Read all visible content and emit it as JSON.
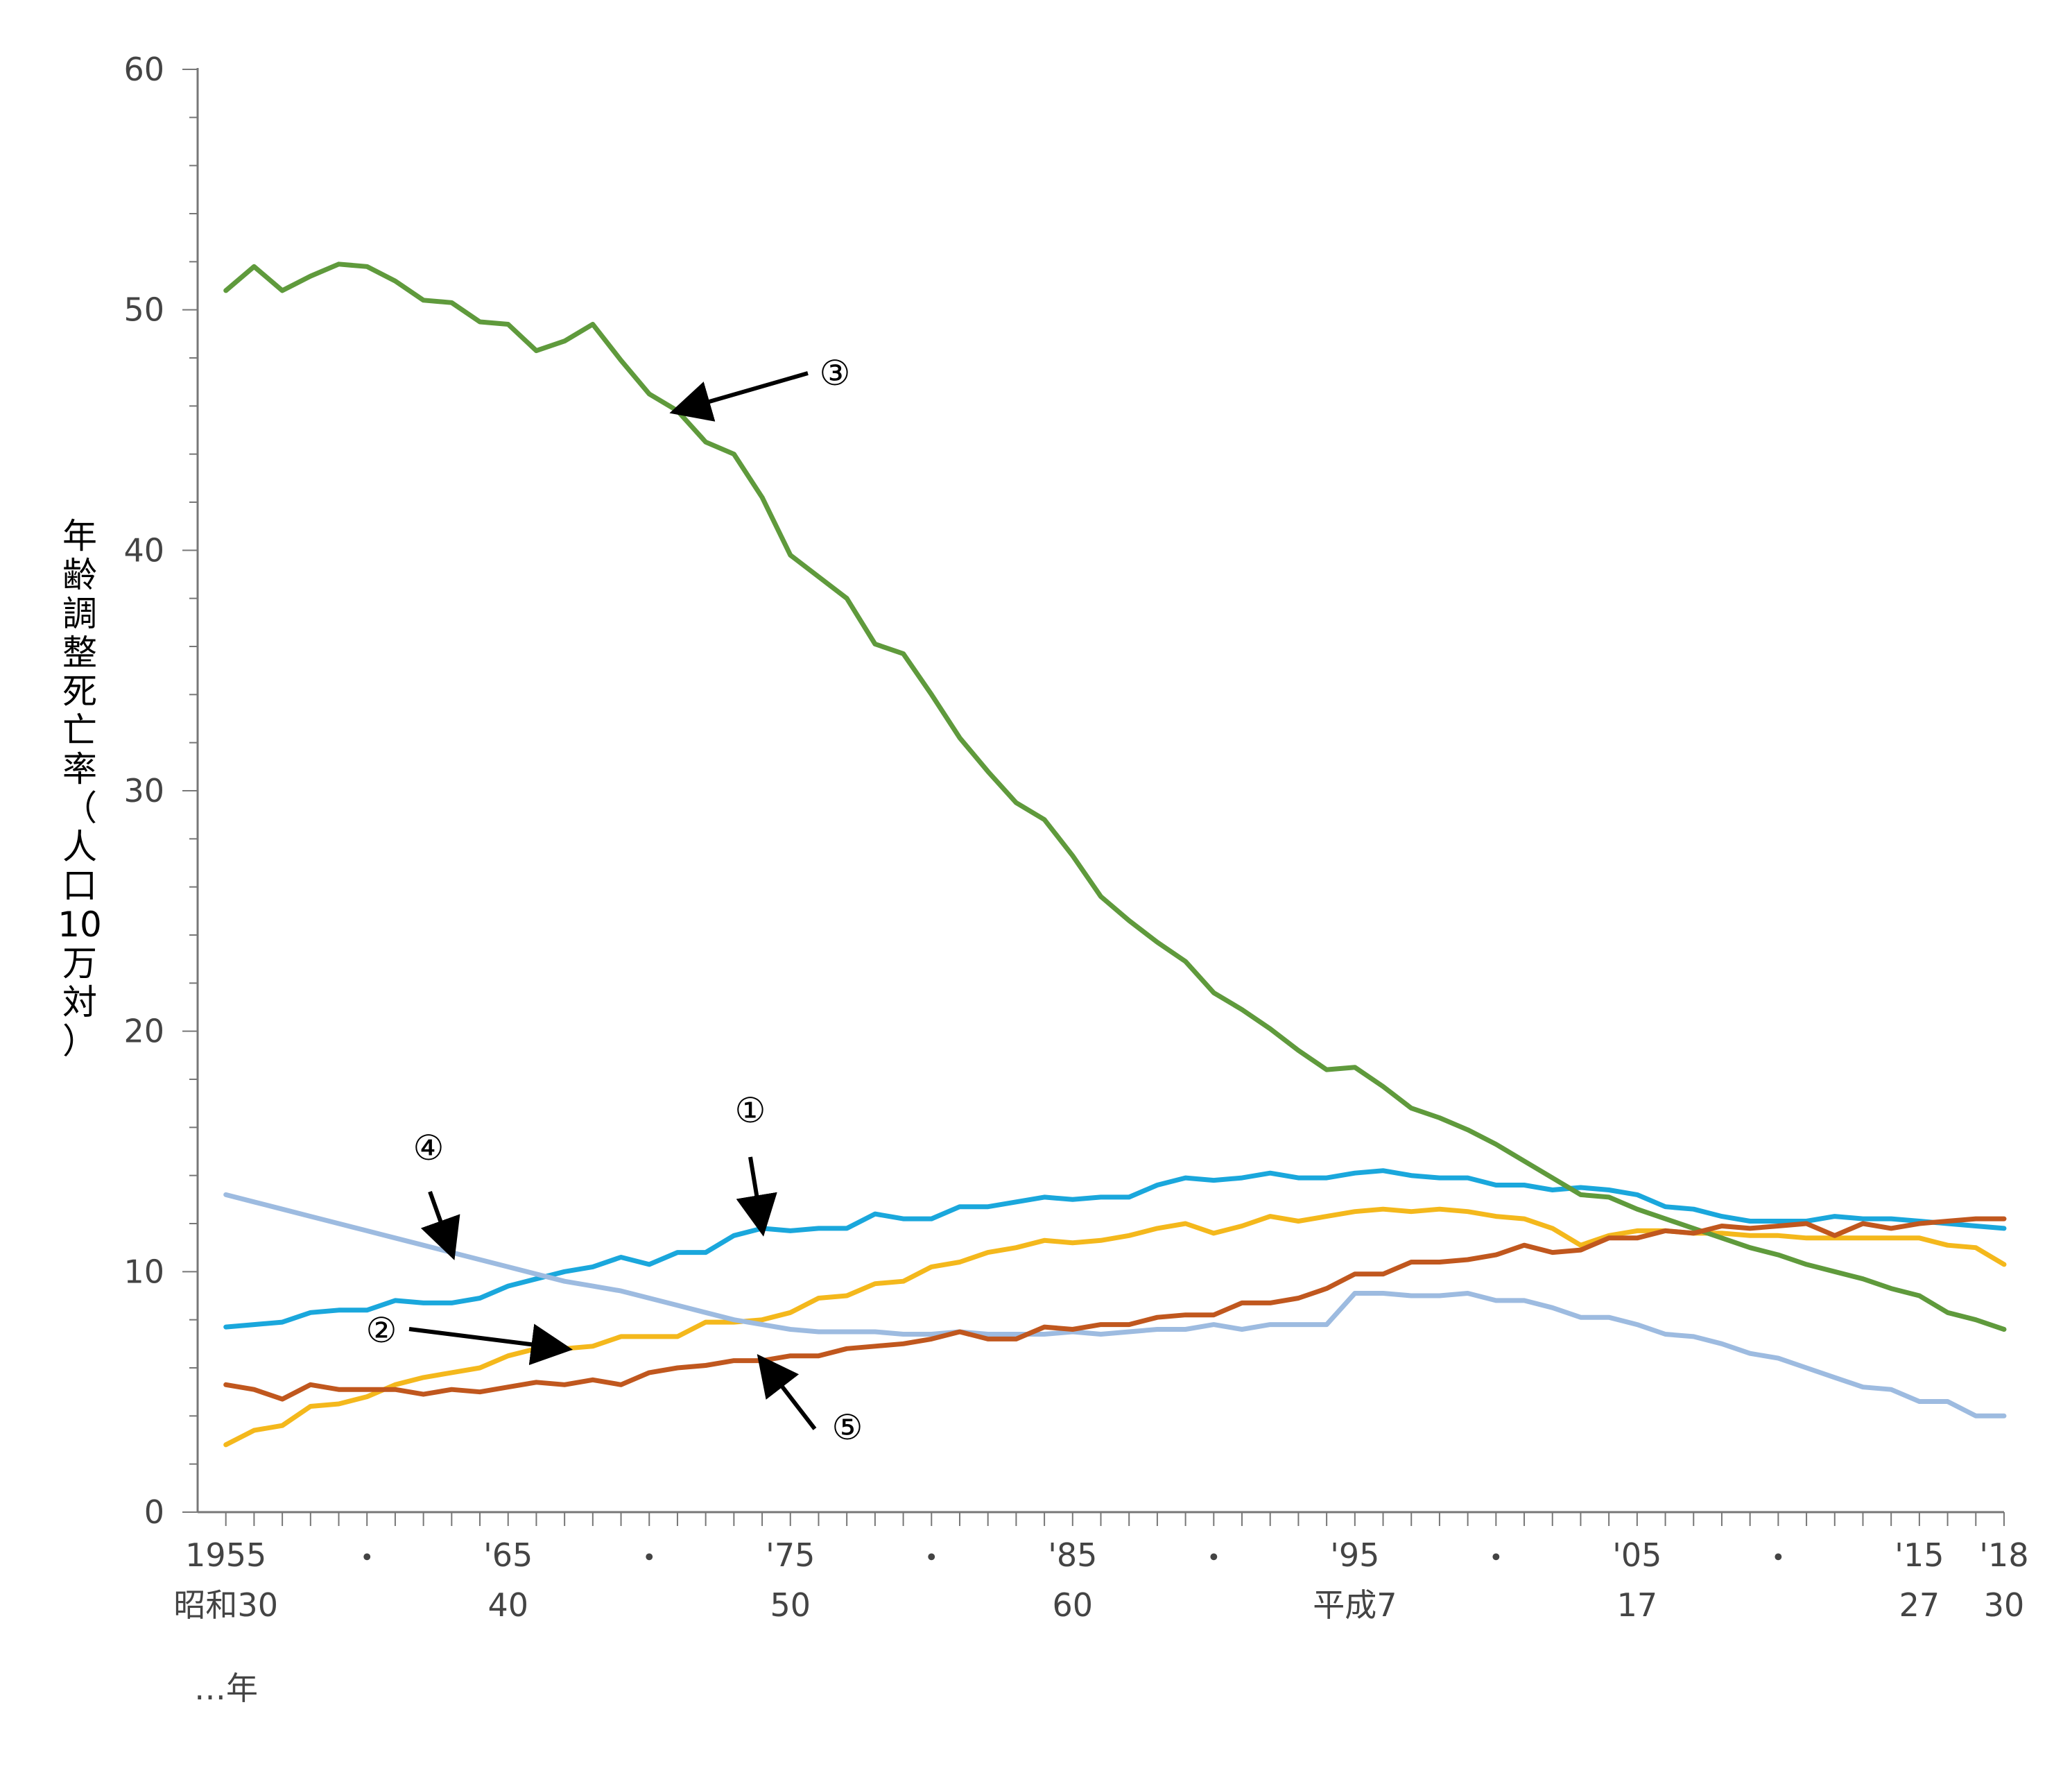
{
  "chart_data": {
    "type": "line",
    "ylabel_chars": [
      "年",
      "齢",
      "調",
      "整",
      "死",
      "亡",
      "率",
      "（",
      "人",
      "口",
      "10",
      "万",
      "対",
      "）"
    ],
    "ylim": [
      0,
      60
    ],
    "yticks": [
      "0",
      "10",
      "20",
      "30",
      "40",
      "50",
      "60"
    ],
    "xlim": [
      1954,
      2018
    ],
    "xtick_labels": [
      {
        "x": 1955,
        "top": "1955",
        "bottom": "昭和30"
      },
      {
        "x": 1960,
        "top": "・",
        "bottom": ""
      },
      {
        "x": 1965,
        "top": "'65",
        "bottom": "40"
      },
      {
        "x": 1970,
        "top": "・",
        "bottom": ""
      },
      {
        "x": 1975,
        "top": "'75",
        "bottom": "50"
      },
      {
        "x": 1980,
        "top": "・",
        "bottom": ""
      },
      {
        "x": 1985,
        "top": "'85",
        "bottom": "60"
      },
      {
        "x": 1990,
        "top": "・",
        "bottom": ""
      },
      {
        "x": 1995,
        "top": "'95",
        "bottom": "平成7"
      },
      {
        "x": 2000,
        "top": "・",
        "bottom": ""
      },
      {
        "x": 2005,
        "top": "'05",
        "bottom": "17"
      },
      {
        "x": 2010,
        "top": "・",
        "bottom": ""
      },
      {
        "x": 2015,
        "top": "'15",
        "bottom": "27"
      },
      {
        "x": 2018,
        "top": "'18",
        "bottom": "30"
      }
    ],
    "unit_label": "…年",
    "grid": false,
    "series": [
      {
        "callout": "①",
        "color": "#1aa7dc",
        "x": [
          1955,
          1956,
          1957,
          1958,
          1959,
          1960,
          1961,
          1962,
          1963,
          1964,
          1965,
          1966,
          1967,
          1968,
          1969,
          1970,
          1971,
          1972,
          1973,
          1974,
          1975,
          1976,
          1977,
          1978,
          1979,
          1980,
          1981,
          1982,
          1983,
          1984,
          1985,
          1986,
          1987,
          1988,
          1989,
          1990,
          1991,
          1992,
          1993,
          1994,
          1995,
          1996,
          1997,
          1998,
          1999,
          2000,
          2001,
          2002,
          2003,
          2004,
          2005,
          2006,
          2007,
          2008,
          2009,
          2010,
          2011,
          2012,
          2013,
          2014,
          2015,
          2016,
          2017,
          2018
        ],
        "values": [
          7.7,
          7.8,
          7.9,
          8.3,
          8.4,
          8.4,
          8.8,
          8.7,
          8.7,
          8.9,
          9.4,
          9.7,
          10.0,
          10.2,
          10.6,
          10.3,
          10.8,
          10.8,
          11.5,
          11.8,
          11.7,
          11.8,
          11.8,
          12.4,
          12.2,
          12.2,
          12.7,
          12.7,
          12.9,
          13.1,
          13.0,
          13.1,
          13.1,
          13.6,
          13.9,
          13.8,
          13.9,
          14.1,
          13.9,
          13.9,
          14.1,
          14.2,
          14.0,
          13.9,
          13.9,
          13.6,
          13.6,
          13.4,
          13.5,
          13.4,
          13.2,
          12.7,
          12.6,
          12.3,
          12.1,
          12.1,
          12.1,
          12.3,
          12.2,
          12.2,
          12.1,
          12.0,
          11.9,
          11.8
        ]
      },
      {
        "callout": "②",
        "color": "#f4b81c",
        "x": [
          1955,
          1956,
          1957,
          1958,
          1959,
          1960,
          1961,
          1962,
          1963,
          1964,
          1965,
          1966,
          1967,
          1968,
          1969,
          1970,
          1971,
          1972,
          1973,
          1974,
          1975,
          1976,
          1977,
          1978,
          1979,
          1980,
          1981,
          1982,
          1983,
          1984,
          1985,
          1986,
          1987,
          1988,
          1989,
          1990,
          1991,
          1992,
          1993,
          1994,
          1995,
          1996,
          1997,
          1998,
          1999,
          2000,
          2001,
          2002,
          2003,
          2004,
          2005,
          2006,
          2007,
          2008,
          2009,
          2010,
          2011,
          2012,
          2013,
          2014,
          2015,
          2016,
          2017,
          2018
        ],
        "values": [
          2.8,
          3.4,
          3.6,
          4.4,
          4.5,
          4.8,
          5.3,
          5.6,
          5.8,
          6.0,
          6.5,
          6.8,
          6.8,
          6.9,
          7.3,
          7.3,
          7.3,
          7.9,
          7.9,
          8.0,
          8.3,
          8.9,
          9.0,
          9.5,
          9.6,
          10.2,
          10.4,
          10.8,
          11.0,
          11.3,
          11.2,
          11.3,
          11.5,
          11.8,
          12.0,
          11.6,
          11.9,
          12.3,
          12.1,
          12.3,
          12.5,
          12.6,
          12.5,
          12.6,
          12.5,
          12.3,
          12.2,
          11.8,
          11.1,
          11.5,
          11.7,
          11.7,
          11.6,
          11.6,
          11.5,
          11.5,
          11.4,
          11.4,
          11.4,
          11.4,
          11.4,
          11.1,
          11.0,
          10.3
        ]
      },
      {
        "callout": "③",
        "color": "#5f9a3c",
        "x": [
          1955,
          1956,
          1957,
          1958,
          1959,
          1960,
          1961,
          1962,
          1963,
          1964,
          1965,
          1966,
          1967,
          1968,
          1969,
          1970,
          1971,
          1972,
          1973,
          1974,
          1975,
          1976,
          1977,
          1978,
          1979,
          1980,
          1981,
          1982,
          1983,
          1984,
          1985,
          1986,
          1987,
          1988,
          1989,
          1990,
          1991,
          1992,
          1993,
          1994,
          1995,
          1996,
          1997,
          1998,
          1999,
          2000,
          2001,
          2002,
          2003,
          2004,
          2005,
          2006,
          2007,
          2008,
          2009,
          2010,
          2011,
          2012,
          2013,
          2014,
          2015,
          2016,
          2017,
          2018
        ],
        "values": [
          50.8,
          51.8,
          50.8,
          51.4,
          51.9,
          51.8,
          51.2,
          50.4,
          50.3,
          49.5,
          49.4,
          48.3,
          48.7,
          49.4,
          47.9,
          46.5,
          45.8,
          44.5,
          44.0,
          42.2,
          39.8,
          38.9,
          38.0,
          36.1,
          35.7,
          34.0,
          32.2,
          30.8,
          29.5,
          28.8,
          27.3,
          25.6,
          24.6,
          23.7,
          22.9,
          21.6,
          20.9,
          20.1,
          19.2,
          18.4,
          18.5,
          17.7,
          16.8,
          16.4,
          15.9,
          15.3,
          14.6,
          13.9,
          13.2,
          13.1,
          12.6,
          12.2,
          11.8,
          11.4,
          11.0,
          10.7,
          10.3,
          10.0,
          9.7,
          9.3,
          9.0,
          8.3,
          8.0,
          7.6
        ]
      },
      {
        "callout": "④",
        "color": "#9dbbe0",
        "x": [
          1955,
          1956,
          1957,
          1958,
          1959,
          1960,
          1961,
          1962,
          1963,
          1964,
          1965,
          1966,
          1967,
          1968,
          1969,
          1970,
          1971,
          1972,
          1973,
          1974,
          1975,
          1976,
          1977,
          1978,
          1979,
          1980,
          1981,
          1982,
          1983,
          1984,
          1985,
          1986,
          1987,
          1988,
          1989,
          1990,
          1991,
          1992,
          1993,
          1994,
          1995,
          1996,
          1997,
          1998,
          1999,
          2000,
          2001,
          2002,
          2003,
          2004,
          2005,
          2006,
          2007,
          2008,
          2009,
          2010,
          2011,
          2012,
          2013,
          2014,
          2015,
          2016,
          2017,
          2018
        ],
        "values": [
          13.2,
          12.9,
          12.6,
          12.3,
          12.0,
          11.7,
          11.4,
          11.1,
          10.8,
          10.5,
          10.2,
          9.9,
          9.6,
          9.4,
          9.2,
          8.9,
          8.6,
          8.3,
          8.0,
          7.8,
          7.6,
          7.5,
          7.5,
          7.5,
          7.4,
          7.4,
          7.5,
          7.4,
          7.4,
          7.4,
          7.5,
          7.4,
          7.5,
          7.6,
          7.6,
          7.8,
          7.6,
          7.8,
          7.8,
          7.8,
          9.1,
          9.1,
          9.0,
          9.0,
          9.1,
          8.8,
          8.8,
          8.5,
          8.1,
          8.1,
          7.8,
          7.4,
          7.3,
          7.0,
          6.6,
          6.4,
          6.0,
          5.6,
          5.2,
          5.1,
          4.6,
          4.6,
          4.0,
          4.0
        ]
      },
      {
        "callout": "⑤",
        "color": "#c0571e",
        "x": [
          1955,
          1956,
          1957,
          1958,
          1959,
          1960,
          1961,
          1962,
          1963,
          1964,
          1965,
          1966,
          1967,
          1968,
          1969,
          1970,
          1971,
          1972,
          1973,
          1974,
          1975,
          1976,
          1977,
          1978,
          1979,
          1980,
          1981,
          1982,
          1983,
          1984,
          1985,
          1986,
          1987,
          1988,
          1989,
          1990,
          1991,
          1992,
          1993,
          1994,
          1995,
          1996,
          1997,
          1998,
          1999,
          2000,
          2001,
          2002,
          2003,
          2004,
          2005,
          2006,
          2007,
          2008,
          2009,
          2010,
          2011,
          2012,
          2013,
          2014,
          2015,
          2016,
          2017,
          2018
        ],
        "values": [
          5.3,
          5.1,
          4.7,
          5.3,
          5.1,
          5.1,
          5.1,
          4.9,
          5.1,
          5.0,
          5.2,
          5.4,
          5.3,
          5.5,
          5.3,
          5.8,
          6.0,
          6.1,
          6.3,
          6.3,
          6.5,
          6.5,
          6.8,
          6.9,
          7.0,
          7.2,
          7.5,
          7.2,
          7.2,
          7.7,
          7.6,
          7.8,
          7.8,
          8.1,
          8.2,
          8.2,
          8.7,
          8.7,
          8.9,
          9.3,
          9.9,
          9.9,
          10.4,
          10.4,
          10.5,
          10.7,
          11.1,
          10.8,
          10.9,
          11.4,
          11.4,
          11.7,
          11.6,
          11.9,
          11.8,
          11.9,
          12.0,
          11.5,
          12.0,
          11.8,
          12.0,
          12.1,
          12.2,
          12.2
        ]
      }
    ]
  }
}
